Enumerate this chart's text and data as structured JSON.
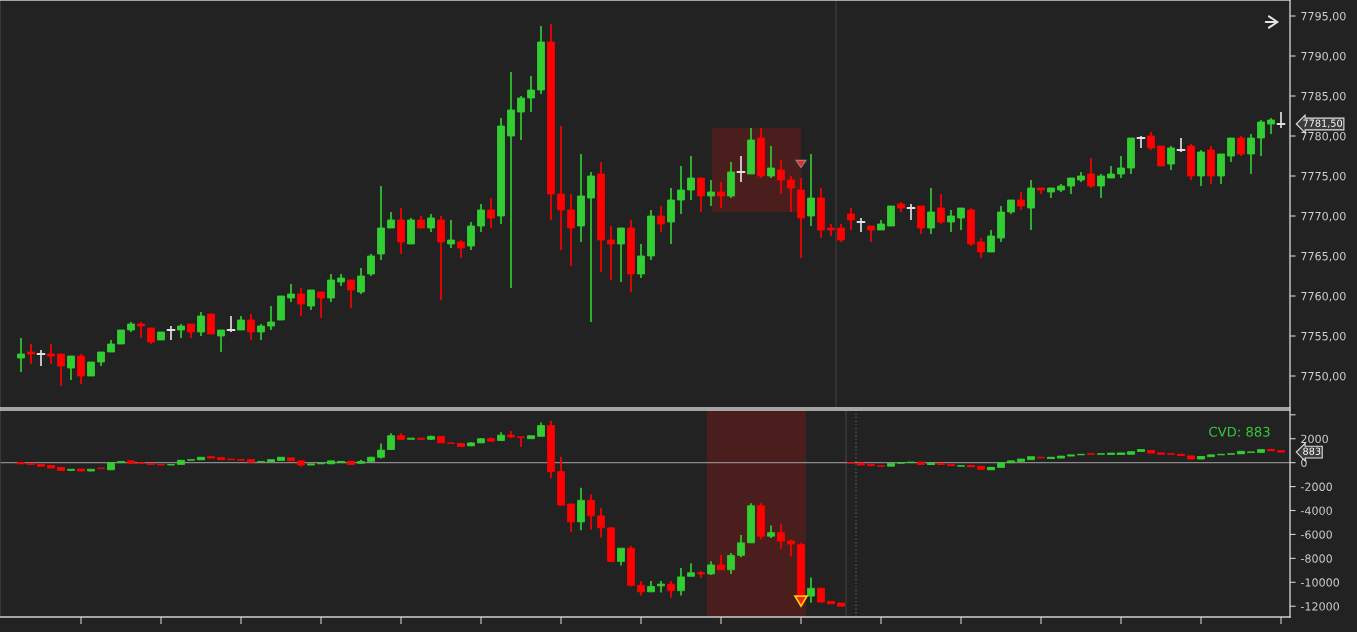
{
  "chart_data": [
    {
      "type": "candlestick",
      "tick_labels": "y",
      "categories": [
        null,
        null,
        null,
        null,
        null,
        null,
        null,
        null,
        null,
        null,
        null,
        null,
        null,
        null,
        null,
        null,
        null,
        null,
        null,
        null,
        null,
        null,
        null,
        null,
        null,
        null,
        null,
        null,
        null,
        null,
        null,
        null,
        null,
        null,
        null,
        null,
        null,
        null,
        null,
        null,
        null,
        null,
        null,
        null,
        null,
        null,
        null,
        null,
        null,
        null,
        null,
        null,
        null,
        null,
        null,
        null,
        null,
        null,
        null,
        null,
        null,
        null,
        null,
        null,
        null,
        null,
        null,
        null,
        null,
        null,
        null,
        null,
        null,
        null,
        null,
        null,
        null,
        null,
        null,
        null,
        null,
        null,
        null,
        null,
        null,
        null,
        null,
        null,
        null,
        null,
        null,
        null,
        null,
        null,
        null,
        null,
        null,
        null,
        null,
        null,
        null,
        null,
        null,
        null,
        null,
        null,
        null,
        null,
        null,
        null,
        null,
        null,
        null,
        null,
        null,
        null,
        null,
        null,
        null,
        null,
        null,
        null,
        null,
        null,
        null,
        null,
        null
      ],
      "ohlc": [
        [
          7752.25,
          7754.75,
          7750.5,
          7752.75
        ],
        [
          7753,
          7754,
          7751.5,
          7752.75
        ],
        [
          7752.75,
          7753.25,
          7751.25,
          7752.75
        ],
        [
          7752.75,
          7754,
          7751.5,
          7752.5
        ],
        [
          7752.75,
          7752.75,
          7748.75,
          7751.25
        ],
        [
          7751,
          7752.5,
          7749.5,
          7752.5
        ],
        [
          7752.5,
          7752.75,
          7749,
          7750
        ],
        [
          7750,
          7751.75,
          7750,
          7751.75
        ],
        [
          7751.75,
          7753,
          7751.25,
          7753
        ],
        [
          7753,
          7754.5,
          7753,
          7754
        ],
        [
          7754,
          7755.75,
          7754,
          7755.75
        ],
        [
          7755.75,
          7756.75,
          7755.5,
          7756.5
        ],
        [
          7756.5,
          7756.75,
          7754.75,
          7756.25
        ],
        [
          7756,
          7756,
          7754,
          7754.25
        ],
        [
          7754.5,
          7755.5,
          7754.5,
          7755.5
        ],
        [
          7755.75,
          7756.25,
          7754.5,
          7755.75
        ],
        [
          7755.75,
          7756.5,
          7754.75,
          7756.25
        ],
        [
          7756.5,
          7756.5,
          7754.75,
          7755.5
        ],
        [
          7755.5,
          7758,
          7755,
          7757.5
        ],
        [
          7757.75,
          7757.75,
          7755.25,
          7755.25
        ],
        [
          7755,
          7755.75,
          7753,
          7755.75
        ],
        [
          7755.75,
          7757.5,
          7755.5,
          7755.75
        ],
        [
          7755.75,
          7757.5,
          7755.75,
          7757
        ],
        [
          7757,
          7757.75,
          7754.5,
          7755.5
        ],
        [
          7755.5,
          7756.5,
          7754.5,
          7756.25
        ],
        [
          7756.25,
          7758.75,
          7755.75,
          7756.75
        ],
        [
          7757,
          7760,
          7757,
          7760
        ],
        [
          7759.75,
          7761.5,
          7759.25,
          7760.25
        ],
        [
          7760.25,
          7761,
          7757.5,
          7759
        ],
        [
          7758.75,
          7760.75,
          7758.25,
          7760.75
        ],
        [
          7760.5,
          7760.5,
          7757.25,
          7759.75
        ],
        [
          7759.75,
          7762.75,
          7759.25,
          7762
        ],
        [
          7761.75,
          7762.75,
          7761.25,
          7762.25
        ],
        [
          7762,
          7762,
          7758.5,
          7760.75
        ],
        [
          7760.5,
          7763.5,
          7760.25,
          7762.5
        ],
        [
          7762.75,
          7765.25,
          7762.5,
          7765
        ],
        [
          7765.25,
          7773.75,
          7764.5,
          7768.5
        ],
        [
          7768.5,
          7770.5,
          7768.5,
          7769.5
        ],
        [
          7769.5,
          7771,
          7765.25,
          7766.75
        ],
        [
          7766.5,
          7769.75,
          7766.5,
          7769.5
        ],
        [
          7769.5,
          7770,
          7768.5,
          7768.5
        ],
        [
          7768.5,
          7770.25,
          7768,
          7769.75
        ],
        [
          7769.5,
          7770,
          7759.5,
          7766.75
        ],
        [
          7766.5,
          7769.5,
          7766,
          7767
        ],
        [
          7766.75,
          7767,
          7764.75,
          7766
        ],
        [
          7766.25,
          7769.25,
          7765.75,
          7768.75
        ],
        [
          7768.75,
          7771.5,
          7768,
          7770.75
        ],
        [
          7770.75,
          7772.25,
          7768.5,
          7769.75
        ],
        [
          7770,
          7782.25,
          7769,
          7781.25
        ],
        [
          7780,
          7788,
          7761,
          7783.25
        ],
        [
          7783,
          7785,
          7779.5,
          7784.75
        ],
        [
          7784.75,
          7787.5,
          7783,
          7785.75
        ],
        [
          7785.75,
          7793.75,
          7785.25,
          7791.75
        ],
        [
          7791.75,
          7794,
          7769.5,
          7772.75
        ],
        [
          7772.75,
          7781.25,
          7765.75,
          7770.75
        ],
        [
          7770.75,
          7772.75,
          7763.75,
          7768.5
        ],
        [
          7768.75,
          7777.75,
          7766.75,
          7772.5
        ],
        [
          7772.25,
          7775.5,
          7756.75,
          7775
        ],
        [
          7775.25,
          7776.75,
          7763,
          7767
        ],
        [
          7767,
          7768.75,
          7762,
          7766.5
        ],
        [
          7766.5,
          7768.5,
          7761.75,
          7768.5
        ],
        [
          7768.5,
          7769.5,
          7760.5,
          7762.75
        ],
        [
          7762.75,
          7766.5,
          7762.25,
          7765
        ],
        [
          7765,
          7770.75,
          7764.5,
          7770
        ],
        [
          7770,
          7771.25,
          7768,
          7769
        ],
        [
          7769.25,
          7773.5,
          7766.5,
          7772
        ],
        [
          7772,
          7776.25,
          7770.25,
          7773.25
        ],
        [
          7773.25,
          7777.5,
          7772,
          7774.75
        ],
        [
          7774.75,
          7774.75,
          7770.5,
          7772.5
        ],
        [
          7772.5,
          7774.5,
          7771.25,
          7773
        ],
        [
          7773,
          7774.25,
          7771,
          7772.5
        ],
        [
          7772.5,
          7776.75,
          7772.25,
          7775.5
        ],
        [
          7775.5,
          7777.5,
          7774.25,
          7775.5
        ],
        [
          7775.25,
          7781,
          7775.25,
          7779.5
        ],
        [
          7779.75,
          7781,
          7774.75,
          7775
        ],
        [
          7775,
          7778.75,
          7774.75,
          7776
        ],
        [
          7775.75,
          7777,
          7772.75,
          7774.5
        ],
        [
          7774.5,
          7775,
          7770.5,
          7773.5
        ],
        [
          7773.25,
          7774.75,
          7764.75,
          7769.75
        ],
        [
          7770,
          7777.75,
          7768.75,
          7772.25
        ],
        [
          7772.25,
          7773.5,
          7767.25,
          7768.25
        ],
        [
          7768.5,
          7769,
          7767.5,
          7768.25
        ],
        [
          7768.5,
          7769,
          7766.75,
          7767
        ],
        [
          7770.25,
          7771,
          7768.25,
          7769.5
        ],
        [
          7769.25,
          7769.75,
          7768,
          7769.25
        ],
        [
          7768.75,
          7768.75,
          7766.75,
          7768.25
        ],
        [
          7768.25,
          7769.5,
          7768.25,
          7769
        ],
        [
          7768.75,
          7771.25,
          7768.75,
          7771.25
        ],
        [
          7771.5,
          7771.75,
          7770.5,
          7771
        ],
        [
          7771,
          7771.5,
          7769.5,
          7771
        ],
        [
          7771.25,
          7771.25,
          7767.75,
          7768.5
        ],
        [
          7768.5,
          7773.5,
          7767.75,
          7770.5
        ],
        [
          7771,
          7772.75,
          7769,
          7769.25
        ],
        [
          7769.25,
          7770.75,
          7768,
          7770
        ],
        [
          7769.75,
          7771,
          7768.25,
          7771
        ],
        [
          7770.75,
          7771,
          7766.25,
          7766.5
        ],
        [
          7766.75,
          7767.25,
          7764.75,
          7765.5
        ],
        [
          7765.5,
          7768.25,
          7765.5,
          7767.5
        ],
        [
          7767.25,
          7771.25,
          7766.75,
          7770.5
        ],
        [
          7770.5,
          7772,
          7770.25,
          7772
        ],
        [
          7772,
          7773,
          7770.75,
          7771.25
        ],
        [
          7771,
          7774.5,
          7768.25,
          7773.5
        ],
        [
          7773.5,
          7773.5,
          7772.75,
          7773.25
        ],
        [
          7773,
          7773.5,
          7772.25,
          7773.5
        ],
        [
          7773.25,
          7774,
          7773,
          7773.75
        ],
        [
          7773.75,
          7774.75,
          7772.75,
          7774.75
        ],
        [
          7774.5,
          7775.5,
          7774.25,
          7775
        ],
        [
          7775.25,
          7777.25,
          7773.5,
          7773.75
        ],
        [
          7773.75,
          7775.25,
          7772.25,
          7775
        ],
        [
          7774.75,
          7776.25,
          7774.75,
          7775.25
        ],
        [
          7775.25,
          7777.5,
          7774.75,
          7776
        ],
        [
          7776,
          7779.75,
          7775.25,
          7779.75
        ],
        [
          7779.75,
          7780,
          7778.5,
          7779.75
        ],
        [
          7780,
          7780.5,
          7778.25,
          7778.5
        ],
        [
          7778.75,
          7778.75,
          7776.25,
          7776.25
        ],
        [
          7776.5,
          7778.75,
          7775.75,
          7778.5
        ],
        [
          7778.25,
          7779.75,
          7778,
          7778.25
        ],
        [
          7778.75,
          7779,
          7774.5,
          7775
        ],
        [
          7775,
          7778.25,
          7773.75,
          7778
        ],
        [
          7778.25,
          7778.75,
          7774,
          7775
        ],
        [
          7775,
          7777.75,
          7774,
          7777.75
        ],
        [
          7777.5,
          7779.75,
          7776.75,
          7779.75
        ],
        [
          7779.75,
          7780,
          7777.5,
          7777.75
        ],
        [
          7777.75,
          7780.25,
          7775.25,
          7779.75
        ],
        [
          7779.75,
          7782,
          7777.5,
          7781.75
        ],
        [
          7781.5,
          7782.25,
          7780.25,
          7782
        ],
        [
          7781.5,
          7783,
          7781,
          7781.5
        ]
      ],
      "colors": [
        "#32cd32",
        "#ff0000",
        "#e0e0e0",
        "#ff0000",
        "#ff0000",
        "#32cd32",
        "#ff0000",
        "#32cd32",
        "#32cd32",
        "#32cd32",
        "#32cd32",
        "#32cd32",
        "#ff0000",
        "#ff0000",
        "#32cd32",
        "#e0e0e0",
        "#32cd32",
        "#ff0000",
        "#32cd32",
        "#ff0000",
        "#32cd32",
        "#e0e0e0",
        "#32cd32",
        "#ff0000",
        "#32cd32",
        "#32cd32",
        "#32cd32",
        "#32cd32",
        "#ff0000",
        "#32cd32",
        "#ff0000",
        "#32cd32",
        "#32cd32",
        "#ff0000",
        "#32cd32",
        "#32cd32",
        "#32cd32",
        "#32cd32",
        "#ff0000",
        "#32cd32",
        "#ff0000",
        "#32cd32",
        "#ff0000",
        "#32cd32",
        "#ff0000",
        "#32cd32",
        "#32cd32",
        "#ff0000",
        "#32cd32",
        "#32cd32",
        "#32cd32",
        "#32cd32",
        "#32cd32",
        "#ff0000",
        "#ff0000",
        "#ff0000",
        "#32cd32",
        "#32cd32",
        "#ff0000",
        "#ff0000",
        "#32cd32",
        "#ff0000",
        "#32cd32",
        "#32cd32",
        "#ff0000",
        "#32cd32",
        "#32cd32",
        "#32cd32",
        "#ff0000",
        "#32cd32",
        "#ff0000",
        "#32cd32",
        "#e0e0e0",
        "#32cd32",
        "#ff0000",
        "#32cd32",
        "#ff0000",
        "#ff0000",
        "#ff0000",
        "#32cd32",
        "#ff0000",
        "#ff0000",
        "#ff0000",
        "#ff0000",
        "#e0e0e0",
        "#ff0000",
        "#32cd32",
        "#32cd32",
        "#ff0000",
        "#e0e0e0",
        "#ff0000",
        "#32cd32",
        "#ff0000",
        "#32cd32",
        "#32cd32",
        "#ff0000",
        "#ff0000",
        "#32cd32",
        "#32cd32",
        "#32cd32",
        "#ff0000",
        "#32cd32",
        "#ff0000",
        "#32cd32",
        "#32cd32",
        "#32cd32",
        "#32cd32",
        "#ff0000",
        "#32cd32",
        "#32cd32",
        "#32cd32",
        "#32cd32",
        "#e0e0e0",
        "#ff0000",
        "#ff0000",
        "#32cd32",
        "#e0e0e0",
        "#ff0000",
        "#32cd32",
        "#ff0000",
        "#32cd32",
        "#32cd32",
        "#ff0000",
        "#32cd32",
        "#32cd32",
        "#32cd32",
        "#e0e0e0"
      ],
      "ylim": [
        7746,
        7797
      ],
      "yticks": [
        {
          "value": 7750,
          "label": "7750,00"
        },
        {
          "value": 7755,
          "label": "7755,00"
        },
        {
          "value": 7760,
          "label": "7760,00"
        },
        {
          "value": 7765,
          "label": "7765,00"
        },
        {
          "value": 7770,
          "label": "7770,00"
        },
        {
          "value": 7775,
          "label": "7775,00"
        },
        {
          "value": 7780,
          "label": "7780,00"
        },
        {
          "value": 7785,
          "label": "7785,00"
        },
        {
          "value": 7790,
          "label": "7790,00"
        },
        {
          "value": 7795,
          "label": "7795,00"
        }
      ],
      "annotations": [
        "7781,50"
      ]
    },
    {
      "type": "candlestick",
      "tick_labels": "y",
      "categories": [
        null,
        null,
        null,
        null,
        null,
        null,
        null,
        null,
        null,
        null,
        null,
        null,
        null,
        null,
        null,
        null,
        null,
        null,
        null,
        null,
        null,
        null,
        null,
        null,
        null,
        null,
        null,
        null,
        null,
        null,
        null,
        null,
        null,
        null,
        null,
        null,
        null,
        null,
        null,
        null,
        null,
        null,
        null,
        null,
        null,
        null,
        null,
        null,
        null,
        null,
        null,
        null,
        null,
        null,
        null,
        null,
        null,
        null,
        null,
        null,
        null,
        null,
        null,
        null,
        null,
        null,
        null,
        null,
        null,
        null,
        null,
        null,
        null,
        null,
        null,
        null,
        null,
        null,
        null,
        null,
        null,
        null,
        null,
        null,
        null,
        null,
        null,
        null,
        null,
        null,
        null,
        null,
        null,
        null,
        null,
        null,
        null,
        null,
        null,
        null,
        null,
        null,
        null,
        null,
        null,
        null,
        null,
        null,
        null,
        null,
        null,
        null,
        null,
        null,
        null,
        null,
        null,
        null,
        null,
        null,
        null,
        null,
        null,
        null,
        null,
        null,
        null
      ],
      "ohlc": [
        [
          0,
          0,
          -100,
          -50
        ],
        [
          -50,
          -50,
          -150,
          -150
        ],
        [
          -150,
          -150,
          -300,
          -250
        ],
        [
          -250,
          -250,
          -450,
          -400
        ],
        [
          -400,
          -400,
          -650,
          -600
        ],
        [
          -650,
          -550,
          -650,
          -550
        ],
        [
          -550,
          -550,
          -700,
          -650
        ],
        [
          -700,
          -550,
          -700,
          -550
        ],
        [
          -450,
          -450,
          -500,
          -500
        ],
        [
          -600,
          0,
          -600,
          0
        ],
        [
          0,
          100,
          0,
          100
        ],
        [
          100,
          150,
          -50,
          0
        ],
        [
          0,
          0,
          -50,
          -50
        ],
        [
          -50,
          -50,
          -150,
          -150
        ],
        [
          -150,
          -150,
          -200,
          -200
        ],
        [
          -200,
          -150,
          -200,
          -150
        ],
        [
          -150,
          200,
          -150,
          200
        ],
        [
          200,
          250,
          200,
          250
        ],
        [
          250,
          450,
          250,
          400
        ],
        [
          450,
          500,
          400,
          400
        ],
        [
          400,
          400,
          250,
          300
        ],
        [
          300,
          300,
          250,
          250
        ],
        [
          250,
          250,
          200,
          200
        ],
        [
          200,
          250,
          50,
          50
        ],
        [
          50,
          100,
          50,
          100
        ],
        [
          100,
          250,
          100,
          200
        ],
        [
          200,
          450,
          200,
          400
        ],
        [
          400,
          400,
          150,
          150
        ],
        [
          150,
          150,
          -350,
          -200
        ],
        [
          -200,
          -100,
          -200,
          -100
        ],
        [
          -100,
          -50,
          -100,
          -50
        ],
        [
          -50,
          150,
          -100,
          50
        ],
        [
          50,
          100,
          0,
          100
        ],
        [
          100,
          100,
          -150,
          -50
        ],
        [
          -50,
          250,
          -50,
          100
        ],
        [
          100,
          500,
          100,
          450
        ],
        [
          450,
          1600,
          350,
          1050
        ],
        [
          1100,
          2450,
          1050,
          2250
        ],
        [
          2250,
          2450,
          1900,
          1950
        ],
        [
          1950,
          2050,
          1950,
          2050
        ],
        [
          2050,
          2050,
          1950,
          1950
        ],
        [
          1950,
          2250,
          1900,
          2200
        ],
        [
          2200,
          2200,
          1650,
          1650
        ],
        [
          1650,
          1650,
          1600,
          1600
        ],
        [
          1600,
          1600,
          1350,
          1400
        ],
        [
          1400,
          1700,
          1400,
          1650
        ],
        [
          1650,
          2050,
          1650,
          2000
        ],
        [
          2000,
          2100,
          1750,
          1800
        ],
        [
          1850,
          2550,
          1850,
          2300
        ],
        [
          2300,
          2650,
          2050,
          2150
        ],
        [
          2150,
          2150,
          1300,
          2100
        ],
        [
          2050,
          2250,
          2000,
          2200
        ],
        [
          2200,
          3350,
          2200,
          3100
        ],
        [
          3100,
          3500,
          -1300,
          -750
        ],
        [
          -750,
          500,
          -3600,
          -3550
        ],
        [
          -3450,
          -3450,
          -5800,
          -4950
        ],
        [
          -4950,
          -2100,
          -5650,
          -3150
        ],
        [
          -3150,
          -2650,
          -5600,
          -4450
        ],
        [
          -4450,
          -3800,
          -6250,
          -5450
        ],
        [
          -5450,
          -5400,
          -8300,
          -8250
        ],
        [
          -8250,
          -7150,
          -8600,
          -7150
        ],
        [
          -7150,
          -6950,
          -10350,
          -10250
        ],
        [
          -10250,
          -9900,
          -11100,
          -10800
        ],
        [
          -10800,
          -9900,
          -10800,
          -10350
        ],
        [
          -10300,
          -9900,
          -10850,
          -10150
        ],
        [
          -10150,
          -9900,
          -11300,
          -10700
        ],
        [
          -10700,
          -8800,
          -11100,
          -9550
        ],
        [
          -9500,
          -8400,
          -9500,
          -9200
        ],
        [
          -9200,
          -9050,
          -9650,
          -9300
        ],
        [
          -9300,
          -8250,
          -9400,
          -8550
        ],
        [
          -8550,
          -7700,
          -8950,
          -8950
        ],
        [
          -8950,
          -7550,
          -9300,
          -7750
        ],
        [
          -7750,
          -6050,
          -7900,
          -6700
        ],
        [
          -6700,
          -3400,
          -6700,
          -3600
        ],
        [
          -3600,
          -3350,
          -6400,
          -6150
        ],
        [
          -6150,
          -5250,
          -6300,
          -5850
        ],
        [
          -5850,
          -5100,
          -7200,
          -6550
        ],
        [
          -6550,
          -6450,
          -7850,
          -6800
        ],
        [
          -6850,
          -6700,
          -11250,
          -11250
        ],
        [
          -11150,
          -9600,
          -11700,
          -10500
        ],
        [
          -10500,
          -10450,
          -11700,
          -11650
        ],
        [
          -11650,
          -11600,
          -11800,
          -11750
        ],
        [
          -11750,
          -11750,
          -12000,
          -11950
        ],
        [
          0,
          0,
          -50,
          -50
        ],
        [
          -50,
          -50,
          -200,
          -150
        ],
        [
          -150,
          -150,
          -250,
          -250
        ],
        [
          -250,
          -250,
          -300,
          -300
        ],
        [
          -300,
          -50,
          -300,
          -50
        ],
        [
          -50,
          0,
          -50,
          0
        ],
        [
          0,
          50,
          0,
          50
        ],
        [
          50,
          50,
          -150,
          -150
        ],
        [
          -150,
          -50,
          -150,
          -100
        ],
        [
          -100,
          -50,
          -150,
          -150
        ],
        [
          -150,
          -150,
          -250,
          -250
        ],
        [
          -300,
          -250,
          -300,
          -250
        ],
        [
          -250,
          -250,
          -350,
          -300
        ],
        [
          -300,
          -300,
          -600,
          -550
        ],
        [
          -550,
          -400,
          -600,
          -400
        ],
        [
          -400,
          0,
          -400,
          0
        ],
        [
          0,
          150,
          0,
          100
        ],
        [
          100,
          300,
          100,
          300
        ],
        [
          250,
          500,
          250,
          500
        ],
        [
          450,
          450,
          400,
          400
        ],
        [
          350,
          450,
          350,
          400
        ],
        [
          400,
          550,
          400,
          500
        ],
        [
          550,
          650,
          550,
          650
        ],
        [
          650,
          700,
          650,
          700
        ],
        [
          750,
          750,
          700,
          700
        ],
        [
          700,
          750,
          700,
          750
        ],
        [
          700,
          800,
          700,
          750
        ],
        [
          750,
          800,
          700,
          750
        ],
        [
          750,
          900,
          700,
          900
        ],
        [
          950,
          1100,
          950,
          1050
        ],
        [
          1000,
          1000,
          800,
          850
        ],
        [
          800,
          800,
          700,
          750
        ],
        [
          750,
          750,
          700,
          700
        ],
        [
          650,
          700,
          600,
          600
        ],
        [
          550,
          550,
          300,
          350
        ],
        [
          350,
          500,
          300,
          500
        ],
        [
          500,
          650,
          500,
          650
        ],
        [
          650,
          700,
          650,
          700
        ],
        [
          700,
          750,
          700,
          750
        ],
        [
          750,
          950,
          750,
          850
        ],
        [
          850,
          900,
          850,
          900
        ],
        [
          850,
          1100,
          850,
          1100
        ],
        [
          1100,
          1100,
          1000,
          1050
        ],
        [
          1000,
          1000,
          883,
          883
        ]
      ],
      "colors": [
        "#ff0000",
        "#ff0000",
        "#ff0000",
        "#ff0000",
        "#ff0000",
        "#32cd32",
        "#ff0000",
        "#32cd32",
        "#ff0000",
        "#32cd32",
        "#32cd32",
        "#ff0000",
        "#ff0000",
        "#ff0000",
        "#ff0000",
        "#32cd32",
        "#32cd32",
        "#32cd32",
        "#32cd32",
        "#ff0000",
        "#ff0000",
        "#ff0000",
        "#ff0000",
        "#ff0000",
        "#32cd32",
        "#32cd32",
        "#32cd32",
        "#ff0000",
        "#ff0000",
        "#32cd32",
        "#32cd32",
        "#32cd32",
        "#32cd32",
        "#ff0000",
        "#32cd32",
        "#32cd32",
        "#32cd32",
        "#32cd32",
        "#ff0000",
        "#32cd32",
        "#ff0000",
        "#32cd32",
        "#ff0000",
        "#ff0000",
        "#ff0000",
        "#32cd32",
        "#32cd32",
        "#ff0000",
        "#32cd32",
        "#ff0000",
        "#ff0000",
        "#32cd32",
        "#32cd32",
        "#ff0000",
        "#ff0000",
        "#ff0000",
        "#32cd32",
        "#ff0000",
        "#ff0000",
        "#ff0000",
        "#32cd32",
        "#ff0000",
        "#ff0000",
        "#32cd32",
        "#32cd32",
        "#ff0000",
        "#32cd32",
        "#32cd32",
        "#ff0000",
        "#32cd32",
        "#ff0000",
        "#32cd32",
        "#32cd32",
        "#32cd32",
        "#ff0000",
        "#32cd32",
        "#ff0000",
        "#ff0000",
        "#ff0000",
        "#32cd32",
        "#ff0000",
        "#ff0000",
        "#ff0000",
        "#ff0000",
        "#ff0000",
        "#ff0000",
        "#ff0000",
        "#32cd32",
        "#32cd32",
        "#32cd32",
        "#ff0000",
        "#32cd32",
        "#ff0000",
        "#ff0000",
        "#32cd32",
        "#ff0000",
        "#ff0000",
        "#32cd32",
        "#32cd32",
        "#32cd32",
        "#32cd32",
        "#32cd32",
        "#ff0000",
        "#32cd32",
        "#32cd32",
        "#32cd32",
        "#32cd32",
        "#ff0000",
        "#32cd32",
        "#32cd32",
        "#32cd32",
        "#32cd32",
        "#32cd32",
        "#ff0000",
        "#ff0000",
        "#ff0000",
        "#ff0000",
        "#ff0000",
        "#32cd32",
        "#32cd32",
        "#32cd32",
        "#32cd32",
        "#32cd32",
        "#32cd32",
        "#32cd32",
        "#ff0000",
        "#ff0000"
      ],
      "ylim": [
        -12900,
        4400
      ],
      "yticks": [
        {
          "value": 4000,
          "label": null
        },
        2000,
        0,
        -2000,
        -4000,
        -6000,
        -8000,
        -10000,
        -12000
      ],
      "ref_lines": [
        {
          "axis": "y",
          "value": 0,
          "color": "#8a8a8a"
        }
      ],
      "annotations": [
        "CVD: 883",
        "883"
      ]
    }
  ]
}
